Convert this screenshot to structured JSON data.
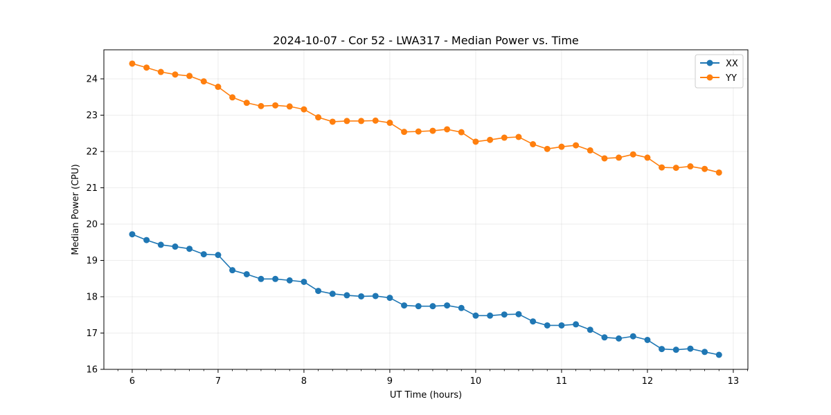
{
  "chart_data": {
    "type": "line",
    "title": "2024-10-07 - Cor 52 - LWA317 - Median Power vs. Time",
    "xlabel": "UT Time (hours)",
    "ylabel": "Median Power (CPU)",
    "xlim": [
      5.67,
      13.17
    ],
    "ylim": [
      16,
      24.8
    ],
    "xticks": [
      6,
      7,
      8,
      9,
      10,
      11,
      12,
      13
    ],
    "xtick_labels": [
      "6",
      "7",
      "8",
      "9",
      "10",
      "11",
      "12",
      "13"
    ],
    "yticks": [
      16,
      17,
      18,
      19,
      20,
      21,
      22,
      23,
      24
    ],
    "ytick_labels": [
      "16",
      "17",
      "18",
      "19",
      "20",
      "21",
      "22",
      "23",
      "24"
    ],
    "grid": true,
    "legend_position": "top-right",
    "x": [
      6.0,
      6.1667,
      6.3333,
      6.5,
      6.6667,
      6.8333,
      7.0,
      7.1667,
      7.3333,
      7.5,
      7.6667,
      7.8333,
      8.0,
      8.1667,
      8.3333,
      8.5,
      8.6667,
      8.8333,
      9.0,
      9.1667,
      9.3333,
      9.5,
      9.6667,
      9.8333,
      10.0,
      10.1667,
      10.3333,
      10.5,
      10.6667,
      10.8333,
      11.0,
      11.1667,
      11.3333,
      11.5,
      11.6667,
      11.8333,
      12.0,
      12.1667,
      12.3333,
      12.5,
      12.6667,
      12.8333
    ],
    "series": [
      {
        "name": "XX",
        "color": "#1f77b4",
        "values": [
          19.72,
          19.56,
          19.43,
          19.38,
          19.32,
          19.17,
          19.15,
          18.73,
          18.62,
          18.49,
          18.49,
          18.45,
          18.41,
          18.16,
          18.08,
          18.04,
          18.01,
          18.02,
          17.97,
          17.76,
          17.74,
          17.74,
          17.76,
          17.69,
          17.48,
          17.48,
          17.51,
          17.52,
          17.32,
          17.21,
          17.21,
          17.24,
          17.09,
          16.88,
          16.85,
          16.91,
          16.81,
          16.56,
          16.54,
          16.57,
          16.48,
          16.4
        ]
      },
      {
        "name": "YY",
        "color": "#ff7f0e",
        "values": [
          24.42,
          24.31,
          24.19,
          24.12,
          24.08,
          23.93,
          23.78,
          23.49,
          23.34,
          23.25,
          23.27,
          23.24,
          23.16,
          22.94,
          22.82,
          22.84,
          22.84,
          22.85,
          22.79,
          22.54,
          22.55,
          22.57,
          22.61,
          22.53,
          22.27,
          22.32,
          22.38,
          22.4,
          22.2,
          22.07,
          22.13,
          22.17,
          22.03,
          21.81,
          21.83,
          21.92,
          21.83,
          21.56,
          21.55,
          21.59,
          21.52,
          21.42
        ]
      }
    ]
  }
}
